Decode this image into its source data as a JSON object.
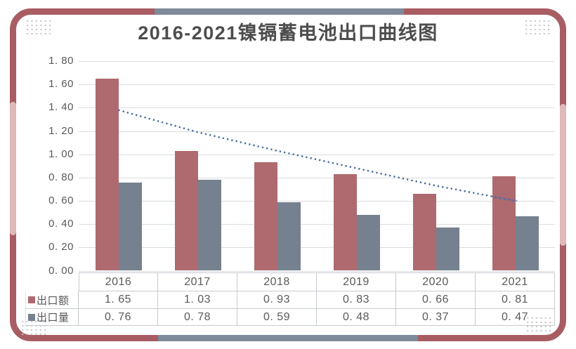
{
  "title": "2016-2021镍镉蓄电池出口曲线图",
  "colors": {
    "export_value_bar": "#ae6a6e",
    "export_volume_bar": "#75818f",
    "trendline": "#41689a",
    "frame_dark_red": "#a85d63",
    "frame_pink": "#deb9b7",
    "frame_gray_blue": "#7d8a99",
    "gridline": "#d9dcde",
    "table_border": "#c6cbd0",
    "text": "#595959"
  },
  "y_axis": {
    "ticks": [
      "1. 80",
      "1. 60",
      "1. 40",
      "1. 20",
      "1. 00",
      "0. 80",
      "0. 60",
      "0. 40",
      "0. 20",
      "0. 00"
    ],
    "max": 1.8,
    "step": 0.2
  },
  "chart_data": {
    "type": "bar",
    "title": "2016-2021镍镉蓄电池出口曲线图",
    "categories": [
      "2016",
      "2017",
      "2018",
      "2019",
      "2020",
      "2021"
    ],
    "series": [
      {
        "name": "出口额",
        "values": [
          1.65,
          1.03,
          0.93,
          0.83,
          0.66,
          0.81
        ],
        "color": "#ae6a6e"
      },
      {
        "name": "出口量",
        "values": [
          0.76,
          0.78,
          0.59,
          0.48,
          0.37,
          0.47
        ],
        "color": "#75818f"
      }
    ],
    "trendline": {
      "series": "出口额",
      "style": "dotted",
      "color": "#41689a",
      "values": [
        1.38,
        1.19,
        1.03,
        0.88,
        0.73,
        0.6
      ]
    },
    "xlabel": "",
    "ylabel": "",
    "ylim": [
      0,
      1.8
    ],
    "grid": true,
    "legend_position": "data-table-left"
  },
  "data_table": {
    "header": [
      "2016",
      "2017",
      "2018",
      "2019",
      "2020",
      "2021"
    ],
    "rows": [
      {
        "legend": "出口额",
        "swatch": "#ae6a6e",
        "values": [
          "1. 65",
          "1. 03",
          "0. 93",
          "0. 83",
          "0. 66",
          "0. 81"
        ]
      },
      {
        "legend": "出口量",
        "swatch": "#75818f",
        "values": [
          "0. 76",
          "0. 78",
          "0. 59",
          "0. 48",
          "0. 37",
          "0. 47"
        ]
      }
    ]
  }
}
